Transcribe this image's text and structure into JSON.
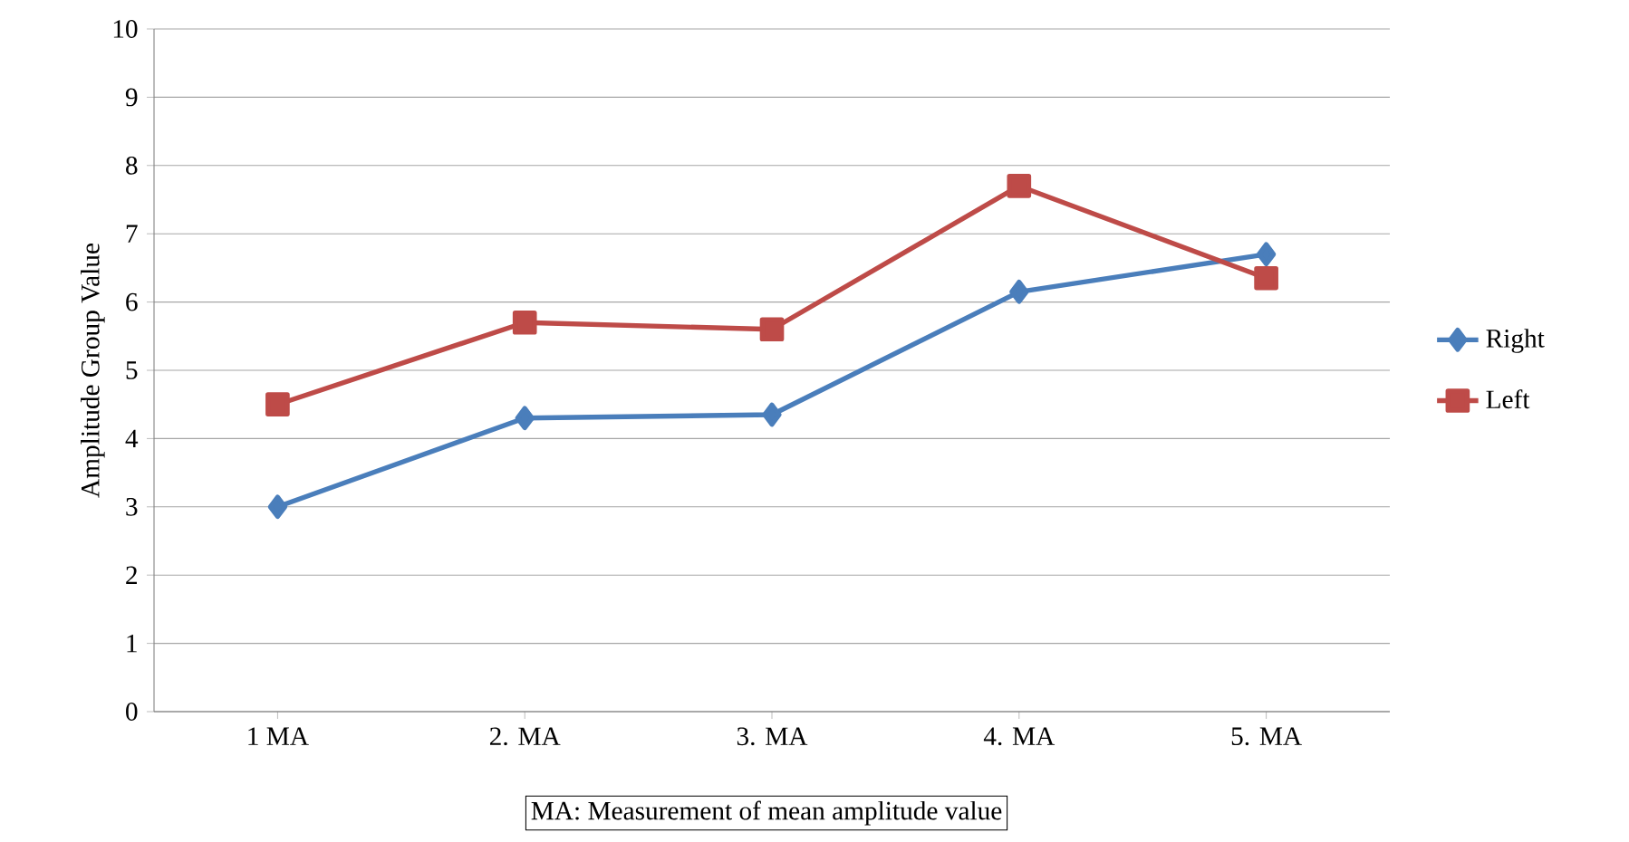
{
  "chart_data": {
    "type": "line",
    "ylabel": "Amplitude Group Value",
    "categories": [
      "1 MA",
      "2. MA",
      "3. MA",
      "4. MA",
      "5. MA"
    ],
    "series": [
      {
        "name": "Right",
        "color": "#4a7ebb",
        "marker": "diamond",
        "values": [
          3.0,
          4.3,
          4.35,
          6.15,
          6.7
        ]
      },
      {
        "name": "Left",
        "color": "#be4b48",
        "marker": "square",
        "values": [
          4.5,
          5.7,
          5.6,
          7.7,
          6.35
        ]
      }
    ],
    "ylim": [
      0,
      10
    ],
    "yticks": [
      0,
      1,
      2,
      3,
      4,
      5,
      6,
      7,
      8,
      9,
      10
    ],
    "grid": "y",
    "legend": "right",
    "annotations": [
      "MA: Measurement of mean amplitude value"
    ]
  }
}
